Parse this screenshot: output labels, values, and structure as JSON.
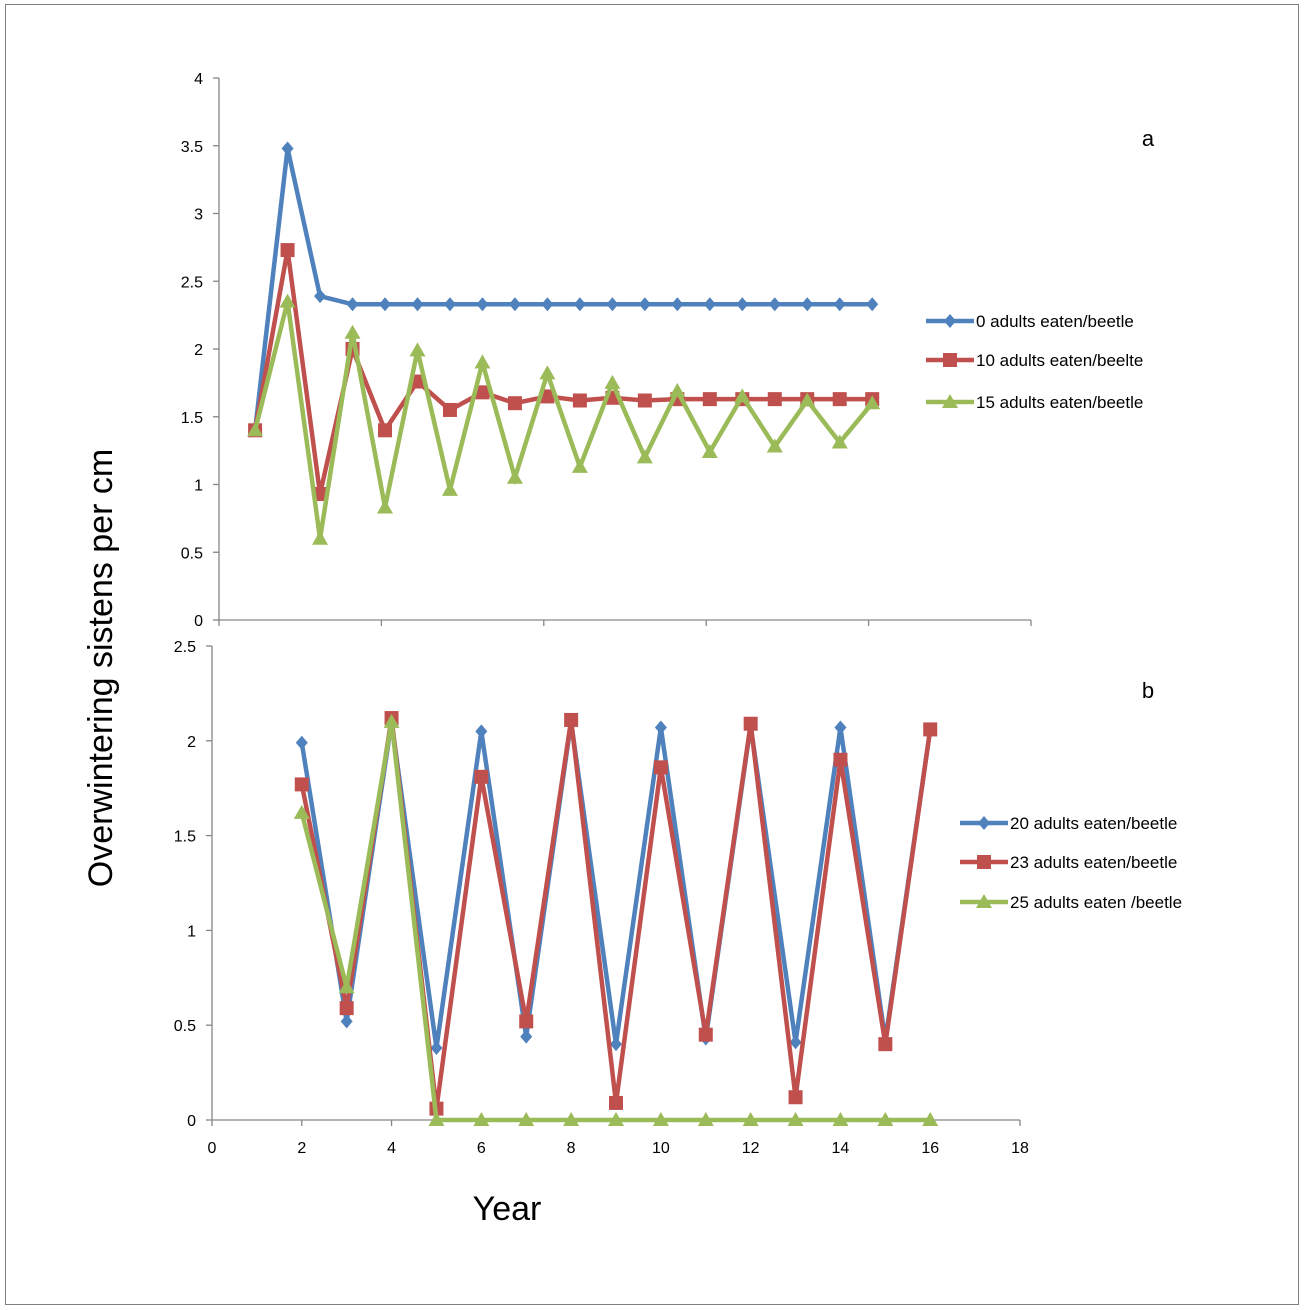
{
  "colors": {
    "blue": "#4F81BD",
    "red": "#C0504D",
    "green": "#9BBB59",
    "axis": "#868686",
    "frame": "#7f7f7f"
  },
  "figure": {
    "ylabel": "Overwintering sistens per cm",
    "xlabel": "Year"
  },
  "chart_data": [
    {
      "type": "line",
      "panel_label": "a",
      "xlabel": "",
      "ylabel": "Overwintering sistens per cm",
      "xlim": [
        0,
        18
      ],
      "ylim": [
        0,
        4
      ],
      "yticks": [
        0,
        0.5,
        1,
        1.5,
        2,
        2.5,
        3,
        3.5,
        4
      ],
      "yticklabels": [
        "0",
        "0.5",
        "1",
        "1.5",
        "2",
        "2.5",
        "3",
        "3.5",
        "4"
      ],
      "xtick_marks": [
        0,
        3.6,
        7.2,
        10.8,
        14.4,
        18
      ],
      "x": [
        0.8,
        1.52,
        2.24,
        2.96,
        3.68,
        4.4,
        5.12,
        5.84,
        6.56,
        7.28,
        8.0,
        8.72,
        9.44,
        10.16,
        10.88,
        11.6,
        12.32,
        13.04,
        13.76,
        14.48
      ],
      "grid": false,
      "legend": "right",
      "series": [
        {
          "name": "0 adults eaten/beetle",
          "color": "#4F81BD",
          "marker": "diamond",
          "values": [
            1.4,
            3.48,
            2.39,
            2.33,
            2.33,
            2.33,
            2.33,
            2.33,
            2.33,
            2.33,
            2.33,
            2.33,
            2.33,
            2.33,
            2.33,
            2.33,
            2.33,
            2.33,
            2.33,
            2.33
          ]
        },
        {
          "name": "10 adults eaten/beelte",
          "color": "#C0504D",
          "marker": "square",
          "values": [
            1.4,
            2.73,
            0.93,
            2.0,
            1.4,
            1.76,
            1.55,
            1.68,
            1.6,
            1.65,
            1.62,
            1.64,
            1.62,
            1.63,
            1.63,
            1.63,
            1.63,
            1.63,
            1.63,
            1.63
          ]
        },
        {
          "name": "15 adults eaten/beetle",
          "color": "#9BBB59",
          "marker": "triangle",
          "values": [
            1.4,
            2.35,
            0.6,
            2.12,
            0.83,
            1.99,
            0.96,
            1.9,
            1.05,
            1.82,
            1.13,
            1.75,
            1.2,
            1.69,
            1.24,
            1.65,
            1.28,
            1.62,
            1.31,
            1.6
          ]
        }
      ]
    },
    {
      "type": "line",
      "panel_label": "b",
      "xlabel": "Year",
      "ylabel": "Overwintering sistens per cm",
      "xlim": [
        0,
        18
      ],
      "ylim": [
        0,
        2.5
      ],
      "xticks": [
        0,
        2,
        4,
        6,
        8,
        10,
        12,
        14,
        16,
        18
      ],
      "xticklabels": [
        "0",
        "2",
        "4",
        "6",
        "8",
        "10",
        "12",
        "14",
        "16",
        "18"
      ],
      "yticks": [
        0,
        0.5,
        1,
        1.5,
        2,
        2.5
      ],
      "yticklabels": [
        "0",
        "0.5",
        "1",
        "1.5",
        "2",
        "2.5"
      ],
      "x": [
        2,
        3,
        4,
        5,
        6,
        7,
        8,
        9,
        10,
        11,
        12,
        13,
        14,
        15,
        16
      ],
      "grid": false,
      "legend": "right",
      "series": [
        {
          "name": "20 adults eaten/beetle",
          "color": "#4F81BD",
          "marker": "diamond",
          "values": [
            1.99,
            0.52,
            2.1,
            0.38,
            2.05,
            0.44,
            2.1,
            0.4,
            2.07,
            0.43,
            2.08,
            0.41,
            2.07,
            0.42,
            2.06
          ]
        },
        {
          "name": "23 adults eaten/beetle",
          "color": "#C0504D",
          "marker": "square",
          "values": [
            1.77,
            0.59,
            2.12,
            0.06,
            1.81,
            0.52,
            2.11,
            0.09,
            1.86,
            0.45,
            2.09,
            0.12,
            1.9,
            0.4,
            2.06
          ]
        },
        {
          "name": "25 adults eaten /beetle",
          "color": "#9BBB59",
          "marker": "triangle",
          "values": [
            1.62,
            0.7,
            2.1,
            0,
            0,
            0,
            0,
            0,
            0,
            0,
            0,
            0,
            0,
            0,
            0
          ]
        }
      ]
    }
  ]
}
